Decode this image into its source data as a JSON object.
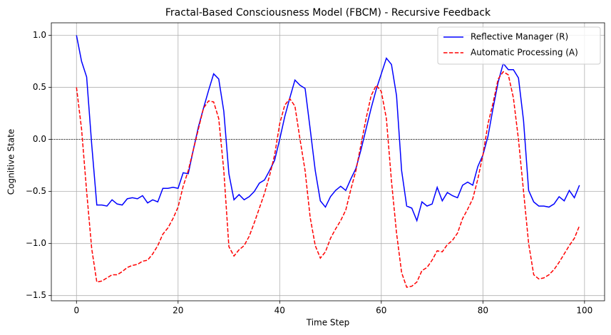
{
  "chart_data": {
    "type": "line",
    "title": "Fractal-Based Consciousness Model (FBCM) - Recursive Feedback",
    "x_label": "Time Step",
    "y_label": "Cognitive State",
    "x": [
      0,
      1,
      2,
      3,
      4,
      5,
      6,
      7,
      8,
      9,
      10,
      11,
      12,
      13,
      14,
      15,
      16,
      17,
      18,
      19,
      20,
      21,
      22,
      23,
      24,
      25,
      26,
      27,
      28,
      29,
      30,
      31,
      32,
      33,
      34,
      35,
      36,
      37,
      38,
      39,
      40,
      41,
      42,
      43,
      44,
      45,
      46,
      47,
      48,
      49,
      50,
      51,
      52,
      53,
      54,
      55,
      56,
      57,
      58,
      59,
      60,
      61,
      62,
      63,
      64,
      65,
      66,
      67,
      68,
      69,
      70,
      71,
      72,
      73,
      74,
      75,
      76,
      77,
      78,
      79,
      80,
      81,
      82,
      83,
      84,
      85,
      86,
      87,
      88,
      89,
      90,
      91,
      92,
      93,
      94,
      95,
      96,
      97,
      98,
      99
    ],
    "series": [
      {
        "name": "Reflective Manager (R)",
        "color": "#0000ff",
        "dash": "solid",
        "values": [
          1.0,
          0.75,
          0.6,
          -0.05,
          -0.63,
          -0.63,
          -0.64,
          -0.58,
          -0.62,
          -0.63,
          -0.57,
          -0.56,
          -0.57,
          -0.54,
          -0.61,
          -0.58,
          -0.6,
          -0.47,
          -0.47,
          -0.46,
          -0.47,
          -0.32,
          -0.33,
          -0.1,
          0.12,
          0.3,
          0.47,
          0.63,
          0.58,
          0.27,
          -0.33,
          -0.58,
          -0.53,
          -0.58,
          -0.55,
          -0.5,
          -0.42,
          -0.39,
          -0.3,
          -0.2,
          0.0,
          0.22,
          0.4,
          0.57,
          0.52,
          0.49,
          0.1,
          -0.3,
          -0.59,
          -0.65,
          -0.55,
          -0.49,
          -0.45,
          -0.49,
          -0.38,
          -0.28,
          -0.1,
          0.1,
          0.3,
          0.48,
          0.63,
          0.78,
          0.72,
          0.42,
          -0.3,
          -0.64,
          -0.66,
          -0.78,
          -0.6,
          -0.64,
          -0.62,
          -0.46,
          -0.59,
          -0.51,
          -0.54,
          -0.56,
          -0.44,
          -0.41,
          -0.44,
          -0.26,
          -0.15,
          0.03,
          0.3,
          0.55,
          0.73,
          0.67,
          0.67,
          0.59,
          0.18,
          -0.49,
          -0.6,
          -0.64,
          -0.64,
          -0.65,
          -0.62,
          -0.55,
          -0.59,
          -0.49,
          -0.56,
          -0.44
        ]
      },
      {
        "name": "Automatic Processing (A)",
        "color": "#ff0000",
        "dash": "dashed",
        "values": [
          0.5,
          0.1,
          -0.5,
          -1.05,
          -1.37,
          -1.36,
          -1.33,
          -1.3,
          -1.3,
          -1.27,
          -1.23,
          -1.21,
          -1.2,
          -1.17,
          -1.16,
          -1.1,
          -1.02,
          -0.91,
          -0.85,
          -0.76,
          -0.65,
          -0.45,
          -0.3,
          -0.1,
          0.1,
          0.3,
          0.37,
          0.36,
          0.2,
          -0.3,
          -1.03,
          -1.12,
          -1.06,
          -1.02,
          -0.93,
          -0.8,
          -0.66,
          -0.52,
          -0.35,
          -0.15,
          0.15,
          0.33,
          0.39,
          0.32,
          0.0,
          -0.3,
          -0.75,
          -1.02,
          -1.14,
          -1.08,
          -0.95,
          -0.86,
          -0.78,
          -0.68,
          -0.48,
          -0.3,
          -0.05,
          0.2,
          0.42,
          0.52,
          0.46,
          0.2,
          -0.4,
          -0.9,
          -1.28,
          -1.42,
          -1.41,
          -1.37,
          -1.26,
          -1.23,
          -1.16,
          -1.07,
          -1.08,
          -1.01,
          -0.97,
          -0.9,
          -0.76,
          -0.67,
          -0.57,
          -0.38,
          -0.15,
          0.15,
          0.35,
          0.58,
          0.65,
          0.62,
          0.4,
          0.0,
          -0.5,
          -1.0,
          -1.3,
          -1.34,
          -1.33,
          -1.3,
          -1.25,
          -1.18,
          -1.1,
          -1.02,
          -0.95,
          -0.83
        ]
      }
    ],
    "reference_line": {
      "y": 0,
      "color": "#000000"
    },
    "xlim": [
      -4.95,
      103.95
    ],
    "ylim": [
      -1.55,
      1.12
    ],
    "xticks": [
      0,
      20,
      40,
      60,
      80,
      100
    ],
    "yticks": [
      {
        "value": -1.5,
        "label": "−1.5"
      },
      {
        "value": -1.0,
        "label": "−1.0"
      },
      {
        "value": -0.5,
        "label": "−0.5"
      },
      {
        "value": 0.0,
        "label": "0.0"
      },
      {
        "value": 0.5,
        "label": "0.5"
      },
      {
        "value": 1.0,
        "label": "1.0"
      }
    ],
    "grid": true,
    "legend": "upper right"
  }
}
